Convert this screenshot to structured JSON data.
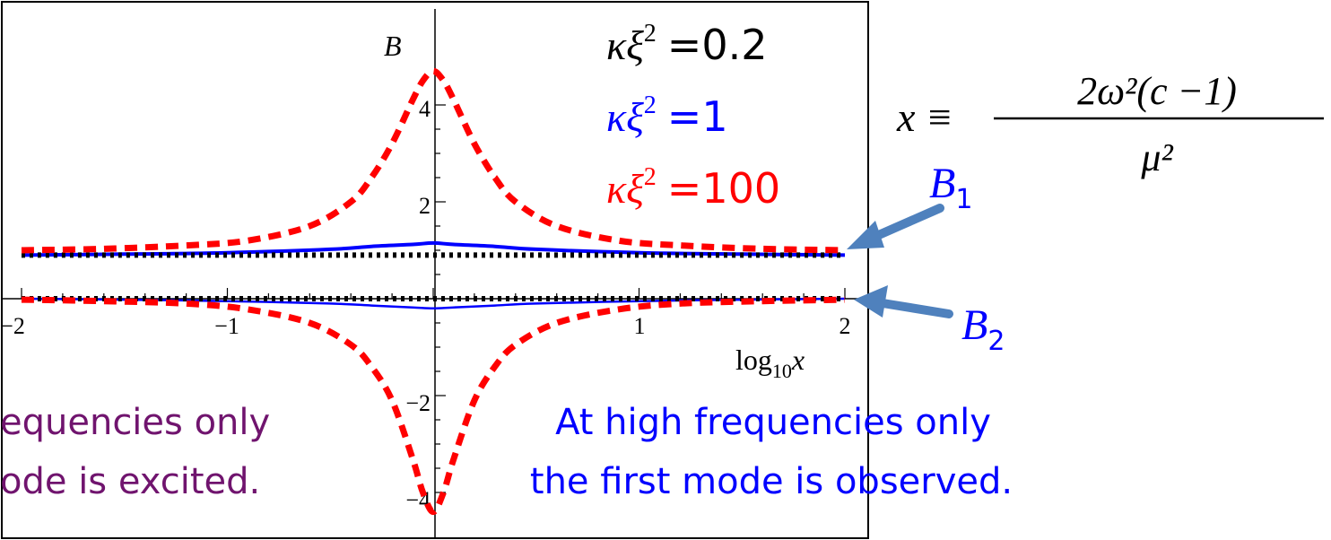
{
  "chart_data": {
    "type": "line",
    "title": "",
    "xlabel": {
      "base": "log",
      "sub": "10",
      "var": "x"
    },
    "ylabel": "B",
    "xlim": [
      -2,
      2
    ],
    "ylim": [
      -4.5,
      4.8
    ],
    "xticks": [
      -2,
      -1,
      1,
      2
    ],
    "xtick_labels": [
      "−2",
      "−1",
      "1",
      "2"
    ],
    "yticks": [
      -4,
      -2,
      2,
      4
    ],
    "ytick_labels": [
      "−4",
      "−2",
      "2",
      "4"
    ],
    "grid": false,
    "legend": {
      "placement": "top-center",
      "entries": [
        {
          "symbol": "κξ",
          "power": "2",
          "value": "=0.2",
          "color": "#000000"
        },
        {
          "symbol": "κξ",
          "power": "2",
          "value": "=1",
          "color": "#0000ff"
        },
        {
          "symbol": "κξ",
          "power": "2",
          "value": "=100",
          "color": "#ff0000"
        }
      ]
    },
    "series": [
      {
        "key": "k0.2",
        "mode": "B1",
        "color": "#000000",
        "style": "dotted",
        "x": [
          -2,
          -1,
          0,
          1,
          2
        ],
        "y": [
          0.9,
          0.9,
          0.9,
          0.9,
          0.9
        ]
      },
      {
        "key": "k0.2",
        "mode": "B2",
        "color": "#000000",
        "style": "dotted",
        "x": [
          -2,
          -1,
          0,
          1,
          2
        ],
        "y": [
          0.0,
          0.0,
          0.0,
          0.0,
          0.0
        ]
      },
      {
        "key": "k1",
        "mode": "B1",
        "color": "#0000ff",
        "style": "solid",
        "x": [
          -2,
          -1.5,
          -1,
          -0.5,
          -0.3,
          -0.1,
          0,
          0.1,
          0.3,
          0.5,
          1,
          1.5,
          2
        ],
        "y": [
          0.9,
          0.92,
          0.95,
          1.02,
          1.08,
          1.12,
          1.15,
          1.12,
          1.08,
          1.02,
          0.95,
          0.92,
          0.9
        ]
      },
      {
        "key": "k1",
        "mode": "B2",
        "color": "#0000ff",
        "style": "solid",
        "x": [
          -2,
          -1.5,
          -1,
          -0.5,
          -0.3,
          -0.1,
          0,
          0.1,
          0.3,
          0.5,
          1,
          1.5,
          2
        ],
        "y": [
          0,
          -0.02,
          -0.05,
          -0.1,
          -0.14,
          -0.18,
          -0.2,
          -0.18,
          -0.14,
          -0.1,
          -0.05,
          -0.02,
          0
        ]
      },
      {
        "key": "k100",
        "mode": "B1",
        "color": "#ff0000",
        "style": "dashed",
        "x": [
          -2,
          -1.6,
          -1.2,
          -0.9,
          -0.6,
          -0.4,
          -0.3,
          -0.2,
          -0.1,
          -0.05,
          0,
          0.05,
          0.1,
          0.2,
          0.3,
          0.4,
          0.6,
          0.9,
          1.2,
          1.6,
          2
        ],
        "y": [
          1.0,
          1.03,
          1.1,
          1.2,
          1.5,
          2.0,
          2.5,
          3.2,
          4.1,
          4.5,
          4.7,
          4.5,
          4.1,
          3.2,
          2.5,
          2.0,
          1.5,
          1.2,
          1.1,
          1.03,
          1.0
        ]
      },
      {
        "key": "k100",
        "mode": "B2",
        "color": "#ff0000",
        "style": "dashed",
        "x": [
          -2,
          -1.6,
          -1.2,
          -0.9,
          -0.6,
          -0.4,
          -0.3,
          -0.2,
          -0.1,
          -0.05,
          0,
          0.05,
          0.1,
          0.2,
          0.3,
          0.4,
          0.6,
          0.9,
          1.2,
          1.6,
          2
        ],
        "y": [
          -0.02,
          -0.05,
          -0.1,
          -0.22,
          -0.5,
          -0.95,
          -1.4,
          -2.1,
          -3.3,
          -4.0,
          -4.4,
          -4.0,
          -3.3,
          -2.1,
          -1.4,
          -0.95,
          -0.5,
          -0.22,
          -0.1,
          -0.05,
          -0.02
        ]
      }
    ]
  },
  "annotations": {
    "mode_labels": [
      {
        "var": "B",
        "sub": "1"
      },
      {
        "var": "B",
        "sub": "2"
      }
    ],
    "arrow_color": "#4f81bd",
    "formula": {
      "lhs": "x ≡",
      "numerator": "2ω²(c −1)",
      "denominator": "μ²"
    },
    "left_note": {
      "line1": "equencies only",
      "line2": "ode is excited.",
      "color": "#70146e"
    },
    "right_note": {
      "line1": "At high frequencies only",
      "line2": "the first mode is observed.",
      "color": "#0000ff"
    }
  }
}
